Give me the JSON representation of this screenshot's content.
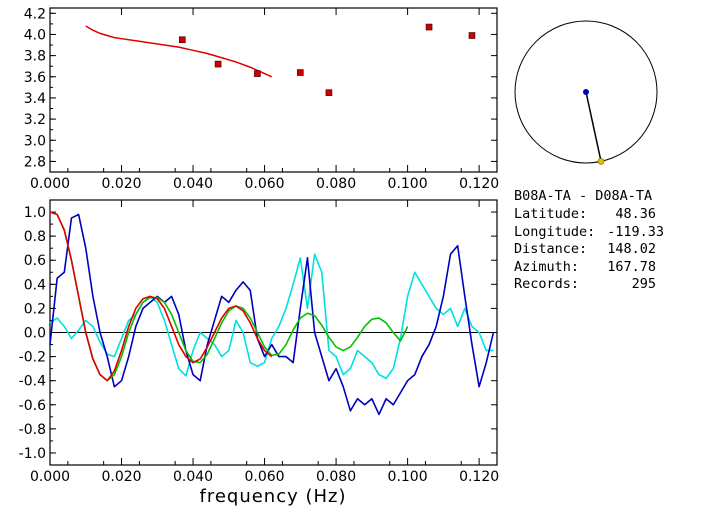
{
  "station_info": {
    "pair": "B08A-TA  -  D08A-TA",
    "latitude_label": "Latitude:",
    "latitude_value": "48.36",
    "longitude_label": "Longitude:",
    "longitude_value": "-119.33",
    "distance_label": "Distance:",
    "distance_value": "148.02",
    "azimuth_label": "Azimuth:",
    "azimuth_value": "167.78",
    "records_label": "Records:",
    "records_value": "295"
  },
  "chart_data": [
    {
      "type": "scatter",
      "xlim": [
        0.0,
        0.125
      ],
      "ylim": [
        2.7,
        4.25
      ],
      "xticks": [
        "0.000",
        "0.020",
        "0.040",
        "0.060",
        "0.080",
        "0.100",
        "0.120"
      ],
      "yticks": [
        "2.8",
        "3.0",
        "3.2",
        "3.4",
        "3.6",
        "3.8",
        "4.0",
        "4.2"
      ],
      "colors": {
        "points": "#cc0000",
        "curve": "#e00000"
      },
      "points": [
        {
          "x": 0.037,
          "y": 3.95
        },
        {
          "x": 0.047,
          "y": 3.72
        },
        {
          "x": 0.058,
          "y": 3.63
        },
        {
          "x": 0.07,
          "y": 3.64
        },
        {
          "x": 0.078,
          "y": 3.45
        },
        {
          "x": 0.106,
          "y": 4.07
        },
        {
          "x": 0.118,
          "y": 3.99
        }
      ],
      "curve": {
        "x": [
          0.01,
          0.012,
          0.014,
          0.016,
          0.018,
          0.02,
          0.024,
          0.028,
          0.032,
          0.036,
          0.04,
          0.044,
          0.048,
          0.052,
          0.056,
          0.06,
          0.062
        ],
        "y": [
          4.08,
          4.04,
          4.01,
          3.99,
          3.97,
          3.96,
          3.94,
          3.92,
          3.9,
          3.88,
          3.85,
          3.82,
          3.78,
          3.74,
          3.69,
          3.63,
          3.6
        ]
      }
    },
    {
      "type": "line",
      "xlim": [
        0.0,
        0.125
      ],
      "ylim": [
        -1.1,
        1.1
      ],
      "xticks": [
        "0.000",
        "0.020",
        "0.040",
        "0.060",
        "0.080",
        "0.100",
        "0.120"
      ],
      "yticks": [
        "1.0",
        "0.8",
        "0.6",
        "0.4",
        "0.2",
        "0.0",
        "-0.2",
        "-0.4",
        "-0.6",
        "-0.8",
        "-1.0"
      ],
      "xlabel": "frequency (Hz)",
      "zero_line": true,
      "series": [
        {
          "color": "#00e0e0",
          "x": [
            0,
            0.002,
            0.004,
            0.006,
            0.008,
            0.01,
            0.012,
            0.014,
            0.016,
            0.018,
            0.02,
            0.022,
            0.024,
            0.026,
            0.028,
            0.03,
            0.032,
            0.034,
            0.036,
            0.038,
            0.04,
            0.042,
            0.044,
            0.046,
            0.048,
            0.05,
            0.052,
            0.054,
            0.056,
            0.058,
            0.06,
            0.062,
            0.064,
            0.066,
            0.068,
            0.07,
            0.072,
            0.074,
            0.076,
            0.078,
            0.08,
            0.082,
            0.084,
            0.086,
            0.088,
            0.09,
            0.092,
            0.094,
            0.096,
            0.098,
            0.1,
            0.102,
            0.104,
            0.106,
            0.108,
            0.11,
            0.112,
            0.114,
            0.116,
            0.118,
            0.12,
            0.122,
            0.124
          ],
          "y": [
            0.08,
            0.12,
            0.05,
            -0.05,
            0.02,
            0.1,
            0.05,
            -0.08,
            -0.18,
            -0.2,
            -0.05,
            0.1,
            0.15,
            0.25,
            0.3,
            0.25,
            0.1,
            -0.1,
            -0.3,
            -0.36,
            -0.15,
            0.0,
            -0.05,
            -0.1,
            -0.2,
            -0.15,
            0.1,
            0.0,
            -0.25,
            -0.28,
            -0.25,
            -0.05,
            0.05,
            0.2,
            0.4,
            0.62,
            0.2,
            0.65,
            0.5,
            -0.15,
            -0.2,
            -0.35,
            -0.3,
            -0.15,
            -0.2,
            -0.25,
            -0.35,
            -0.38,
            -0.3,
            -0.05,
            0.3,
            0.5,
            0.4,
            0.3,
            0.2,
            0.15,
            0.2,
            0.05,
            0.2,
            0.05,
            0.0,
            -0.15,
            -0.15
          ]
        },
        {
          "color": "#0000c0",
          "x": [
            0,
            0.002,
            0.004,
            0.006,
            0.008,
            0.01,
            0.012,
            0.014,
            0.016,
            0.018,
            0.02,
            0.022,
            0.024,
            0.026,
            0.028,
            0.03,
            0.032,
            0.034,
            0.036,
            0.038,
            0.04,
            0.042,
            0.044,
            0.046,
            0.048,
            0.05,
            0.052,
            0.054,
            0.056,
            0.058,
            0.06,
            0.062,
            0.064,
            0.066,
            0.068,
            0.07,
            0.072,
            0.074,
            0.076,
            0.078,
            0.08,
            0.082,
            0.084,
            0.086,
            0.088,
            0.09,
            0.092,
            0.094,
            0.096,
            0.098,
            0.1,
            0.102,
            0.104,
            0.106,
            0.108,
            0.11,
            0.112,
            0.114,
            0.116,
            0.118,
            0.12,
            0.122,
            0.124
          ],
          "y": [
            -0.1,
            0.45,
            0.5,
            0.95,
            0.98,
            0.7,
            0.3,
            0.0,
            -0.2,
            -0.45,
            -0.4,
            -0.2,
            0.05,
            0.2,
            0.25,
            0.3,
            0.25,
            0.3,
            0.15,
            -0.15,
            -0.35,
            -0.4,
            -0.1,
            0.1,
            0.3,
            0.25,
            0.35,
            0.42,
            0.35,
            -0.05,
            -0.2,
            -0.1,
            -0.2,
            -0.2,
            -0.25,
            0.2,
            0.62,
            0.0,
            -0.2,
            -0.4,
            -0.3,
            -0.45,
            -0.65,
            -0.55,
            -0.6,
            -0.55,
            -0.68,
            -0.55,
            -0.6,
            -0.5,
            -0.4,
            -0.35,
            -0.2,
            -0.1,
            0.05,
            0.3,
            0.65,
            0.72,
            0.3,
            -0.1,
            -0.45,
            -0.25,
            0.0
          ]
        },
        {
          "color": "#00c000",
          "x": [
            0,
            0.002,
            0.004,
            0.006,
            0.008,
            0.01,
            0.012,
            0.014,
            0.016,
            0.018,
            0.02,
            0.022,
            0.024,
            0.026,
            0.028,
            0.03,
            0.032,
            0.034,
            0.036,
            0.038,
            0.04,
            0.042,
            0.044,
            0.046,
            0.048,
            0.05,
            0.052,
            0.054,
            0.056,
            0.058,
            0.06,
            0.062,
            0.064,
            0.066,
            0.068,
            0.07,
            0.072,
            0.074,
            0.076,
            0.078,
            0.08,
            0.082,
            0.084,
            0.086,
            0.088,
            0.09,
            0.092,
            0.094,
            0.096,
            0.098,
            0.1
          ],
          "y": [
            1.0,
            0.98,
            0.85,
            0.6,
            0.3,
            0.0,
            -0.22,
            -0.35,
            -0.4,
            -0.35,
            -0.2,
            0.0,
            0.15,
            0.25,
            0.29,
            0.29,
            0.25,
            0.15,
            0.0,
            -0.15,
            -0.24,
            -0.25,
            -0.18,
            -0.05,
            0.08,
            0.18,
            0.22,
            0.2,
            0.12,
            0.0,
            -0.12,
            -0.19,
            -0.18,
            -0.1,
            0.02,
            0.12,
            0.16,
            0.14,
            0.06,
            -0.04,
            -0.12,
            -0.15,
            -0.12,
            -0.04,
            0.05,
            0.11,
            0.12,
            0.08,
            0.0,
            -0.07,
            0.05
          ]
        },
        {
          "color": "#e00000",
          "x": [
            0,
            0.002,
            0.004,
            0.006,
            0.008,
            0.01,
            0.012,
            0.014,
            0.016,
            0.018,
            0.02,
            0.022,
            0.024,
            0.026,
            0.028,
            0.03,
            0.032,
            0.034,
            0.036,
            0.038,
            0.04,
            0.042,
            0.044,
            0.046,
            0.048,
            0.05,
            0.052,
            0.054,
            0.056,
            0.058,
            0.06,
            0.062
          ],
          "y": [
            1.0,
            0.98,
            0.85,
            0.6,
            0.3,
            0.0,
            -0.22,
            -0.35,
            -0.4,
            -0.32,
            -0.15,
            0.05,
            0.2,
            0.28,
            0.3,
            0.28,
            0.2,
            0.05,
            -0.1,
            -0.2,
            -0.25,
            -0.22,
            -0.12,
            0.0,
            0.12,
            0.2,
            0.22,
            0.18,
            0.08,
            -0.05,
            -0.15,
            -0.2
          ]
        }
      ]
    }
  ],
  "map": {
    "circle_color": "#000000",
    "center_dot_color": "#0000c0",
    "end_dot_color": "#e0c000",
    "azimuth_deg": 167.78
  }
}
